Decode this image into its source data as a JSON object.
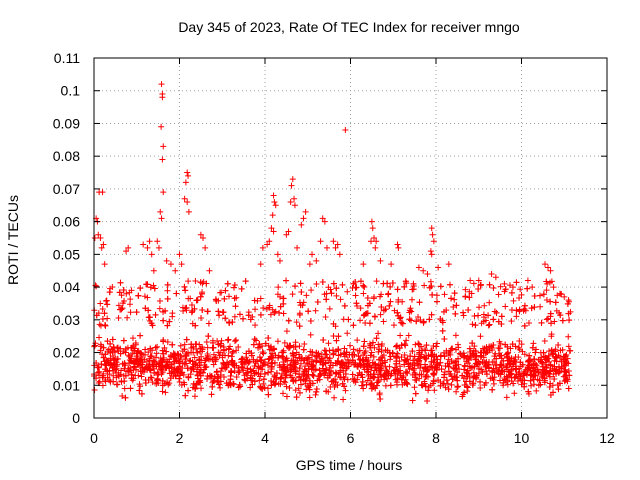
{
  "chart_data": {
    "type": "scatter",
    "title": "Day 345 of 2023, Rate Of TEC Index for receiver mngo",
    "xlabel": "GPS time / hours",
    "ylabel": "ROTI / TECUs",
    "xlim": [
      0,
      12
    ],
    "ylim": [
      0,
      0.11
    ],
    "xticks": [
      {
        "value": 0,
        "label": "0"
      },
      {
        "value": 2,
        "label": "2"
      },
      {
        "value": 4,
        "label": "4"
      },
      {
        "value": 6,
        "label": "6"
      },
      {
        "value": 8,
        "label": "8"
      },
      {
        "value": 10,
        "label": "10"
      },
      {
        "value": 12,
        "label": "12"
      }
    ],
    "yticks": [
      {
        "value": 0,
        "label": "0"
      },
      {
        "value": 0.01,
        "label": "0.01"
      },
      {
        "value": 0.02,
        "label": "0.02"
      },
      {
        "value": 0.03,
        "label": "0.03"
      },
      {
        "value": 0.04,
        "label": "0.04"
      },
      {
        "value": 0.05,
        "label": "0.05"
      },
      {
        "value": 0.06,
        "label": "0.06"
      },
      {
        "value": 0.07,
        "label": "0.07"
      },
      {
        "value": 0.08,
        "label": "0.08"
      },
      {
        "value": 0.09,
        "label": "0.09"
      },
      {
        "value": 0.1,
        "label": "0.1"
      },
      {
        "value": 0.11,
        "label": "0.11"
      }
    ],
    "grid": true,
    "marker": "+",
    "series": [
      {
        "name": "ROTI",
        "color": "#ff0000",
        "bulk": {
          "x_start": 0.0,
          "x_end": 11.15,
          "count": 3200,
          "y_center": 0.016,
          "y_min": 0.004,
          "y_max": 0.028
        },
        "points": [
          [
            1.58,
            0.102
          ],
          [
            1.6,
            0.099
          ],
          [
            1.6,
            0.098
          ],
          [
            1.57,
            0.089
          ],
          [
            1.62,
            0.083
          ],
          [
            1.6,
            0.079
          ],
          [
            1.62,
            0.069
          ],
          [
            1.55,
            0.063
          ],
          [
            1.58,
            0.061
          ],
          [
            1.48,
            0.054
          ],
          [
            1.52,
            0.052
          ],
          [
            2.18,
            0.075
          ],
          [
            2.2,
            0.074
          ],
          [
            2.15,
            0.072
          ],
          [
            2.12,
            0.067
          ],
          [
            2.18,
            0.066
          ],
          [
            2.22,
            0.063
          ],
          [
            0.05,
            0.061
          ],
          [
            0.08,
            0.06
          ],
          [
            0.12,
            0.069
          ],
          [
            0.2,
            0.069
          ],
          [
            0.1,
            0.056
          ],
          [
            0.15,
            0.055
          ],
          [
            0.02,
            0.055
          ],
          [
            0.22,
            0.053
          ],
          [
            0.18,
            0.052
          ],
          [
            0.25,
            0.047
          ],
          [
            0.8,
            0.052
          ],
          [
            0.75,
            0.051
          ],
          [
            1.15,
            0.053
          ],
          [
            1.25,
            0.052
          ],
          [
            1.3,
            0.054
          ],
          [
            1.35,
            0.05
          ],
          [
            1.4,
            0.045
          ],
          [
            1.7,
            0.048
          ],
          [
            1.8,
            0.047
          ],
          [
            1.9,
            0.045
          ],
          [
            2.0,
            0.05
          ],
          [
            2.05,
            0.047
          ],
          [
            2.5,
            0.056
          ],
          [
            2.55,
            0.055
          ],
          [
            2.6,
            0.052
          ],
          [
            2.7,
            0.045
          ],
          [
            4.2,
            0.068
          ],
          [
            4.22,
            0.066
          ],
          [
            4.25,
            0.065
          ],
          [
            4.18,
            0.062
          ],
          [
            4.15,
            0.058
          ],
          [
            4.2,
            0.057
          ],
          [
            4.1,
            0.054
          ],
          [
            4.05,
            0.053
          ],
          [
            4.3,
            0.05
          ],
          [
            4.35,
            0.048
          ],
          [
            3.9,
            0.047
          ],
          [
            3.95,
            0.052
          ],
          [
            4.65,
            0.073
          ],
          [
            4.62,
            0.071
          ],
          [
            4.68,
            0.067
          ],
          [
            4.6,
            0.066
          ],
          [
            4.7,
            0.065
          ],
          [
            4.95,
            0.063
          ],
          [
            4.9,
            0.061
          ],
          [
            4.85,
            0.059
          ],
          [
            4.55,
            0.057
          ],
          [
            4.5,
            0.056
          ],
          [
            4.75,
            0.052
          ],
          [
            5.35,
            0.061
          ],
          [
            5.4,
            0.06
          ],
          [
            5.3,
            0.054
          ],
          [
            5.45,
            0.052
          ],
          [
            5.1,
            0.05
          ],
          [
            5.2,
            0.048
          ],
          [
            5.05,
            0.047
          ],
          [
            5.6,
            0.054
          ],
          [
            5.65,
            0.052
          ],
          [
            5.7,
            0.053
          ],
          [
            5.75,
            0.05
          ],
          [
            5.88,
            0.088
          ],
          [
            6.5,
            0.06
          ],
          [
            6.52,
            0.058
          ],
          [
            6.55,
            0.055
          ],
          [
            6.48,
            0.054
          ],
          [
            6.6,
            0.054
          ],
          [
            6.58,
            0.052
          ],
          [
            6.3,
            0.047
          ],
          [
            6.7,
            0.048
          ],
          [
            6.95,
            0.047
          ],
          [
            7.1,
            0.053
          ],
          [
            7.12,
            0.052
          ],
          [
            7.9,
            0.058
          ],
          [
            7.92,
            0.056
          ],
          [
            7.95,
            0.054
          ],
          [
            7.88,
            0.051
          ],
          [
            7.9,
            0.05
          ],
          [
            7.6,
            0.046
          ],
          [
            7.7,
            0.045
          ],
          [
            7.8,
            0.044
          ],
          [
            8.05,
            0.046
          ],
          [
            8.3,
            0.047
          ],
          [
            8.8,
            0.042
          ],
          [
            9.0,
            0.042
          ],
          [
            9.3,
            0.044
          ],
          [
            9.4,
            0.043
          ],
          [
            9.6,
            0.041
          ],
          [
            9.8,
            0.04
          ],
          [
            10.15,
            0.042
          ],
          [
            10.25,
            0.04
          ],
          [
            10.55,
            0.047
          ],
          [
            10.62,
            0.046
          ],
          [
            10.68,
            0.045
          ],
          [
            10.6,
            0.041
          ],
          [
            10.75,
            0.04
          ],
          [
            10.9,
            0.038
          ],
          [
            11.0,
            0.037
          ],
          [
            11.1,
            0.036
          ]
        ]
      }
    ]
  }
}
